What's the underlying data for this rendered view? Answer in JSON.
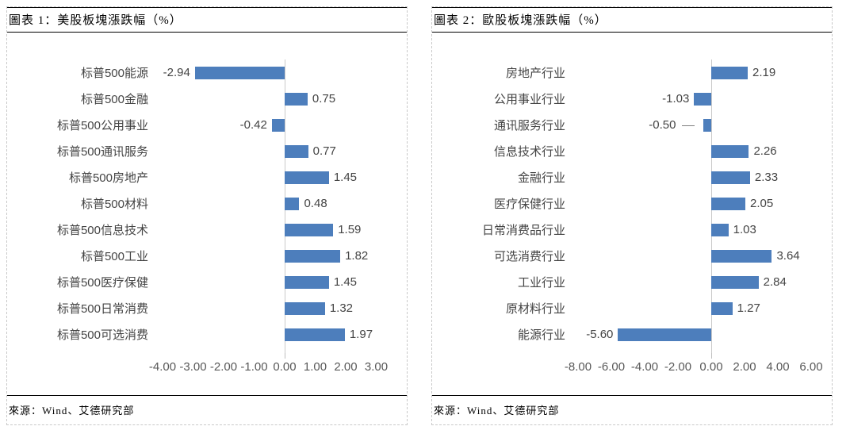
{
  "bar_color": "#4d7ebc",
  "chart_data": [
    {
      "type": "bar",
      "orientation": "horizontal",
      "title": "圖表 1：美股板塊漲跌幅（%）",
      "source": "來源：Wind、艾德研究部",
      "categories": [
        "标普500能源",
        "标普500金融",
        "标普500公用事业",
        "标普500通讯服务",
        "标普500房地产",
        "标普500材料",
        "标普500信息技术",
        "标普500工业",
        "标普500医疗保健",
        "标普500日常消费",
        "标普500可选消费"
      ],
      "values": [
        -2.94,
        0.75,
        -0.42,
        0.77,
        1.45,
        0.48,
        1.59,
        1.82,
        1.45,
        1.32,
        1.97
      ],
      "value_labels": [
        "-2.94",
        "0.75",
        "-0.42",
        "0.77",
        "1.45",
        "0.48",
        "1.59",
        "1.82",
        "1.45",
        "1.32",
        "1.97"
      ],
      "x_ticks": [
        {
          "v": -4,
          "label": "-4.00"
        },
        {
          "v": -3,
          "label": "-3.00"
        },
        {
          "v": -2,
          "label": "-2.00"
        },
        {
          "v": -1,
          "label": "-1.00"
        },
        {
          "v": 0,
          "label": "0.00"
        },
        {
          "v": 1,
          "label": "1.00"
        },
        {
          "v": 2,
          "label": "2.00"
        },
        {
          "v": 3,
          "label": "3.00"
        }
      ],
      "xlim": [
        -4.5,
        3.6
      ],
      "grid": false,
      "legend": "none",
      "leader_line_indices": []
    },
    {
      "type": "bar",
      "orientation": "horizontal",
      "title": "圖表 2：歐股板塊漲跌幅（%）",
      "source": "來源：Wind、艾德研究部",
      "categories": [
        "房地产行业",
        "公用事业行业",
        "通讯服务行业",
        "信息技术行业",
        "金融行业",
        "医疗保健行业",
        "日常消费品行业",
        "可选消费行业",
        "工业行业",
        "原材料行业",
        "能源行业"
      ],
      "values": [
        2.19,
        -1.03,
        -0.5,
        2.26,
        2.33,
        2.05,
        1.03,
        3.64,
        2.84,
        1.27,
        -5.6
      ],
      "value_labels": [
        "2.19",
        "-1.03",
        "-0.50",
        "2.26",
        "2.33",
        "2.05",
        "1.03",
        "3.64",
        "2.84",
        "1.27",
        "-5.60"
      ],
      "x_ticks": [
        {
          "v": -8,
          "label": "-8.00"
        },
        {
          "v": -6,
          "label": "-6.00"
        },
        {
          "v": -4,
          "label": "-4.00"
        },
        {
          "v": -2,
          "label": "-2.00"
        },
        {
          "v": 0,
          "label": "0.00"
        },
        {
          "v": 2,
          "label": "2.00"
        },
        {
          "v": 4,
          "label": "4.00"
        },
        {
          "v": 6,
          "label": "6.00"
        }
      ],
      "xlim": [
        -8.8,
        7.2
      ],
      "grid": false,
      "legend": "none",
      "leader_line_indices": [
        2
      ]
    }
  ]
}
